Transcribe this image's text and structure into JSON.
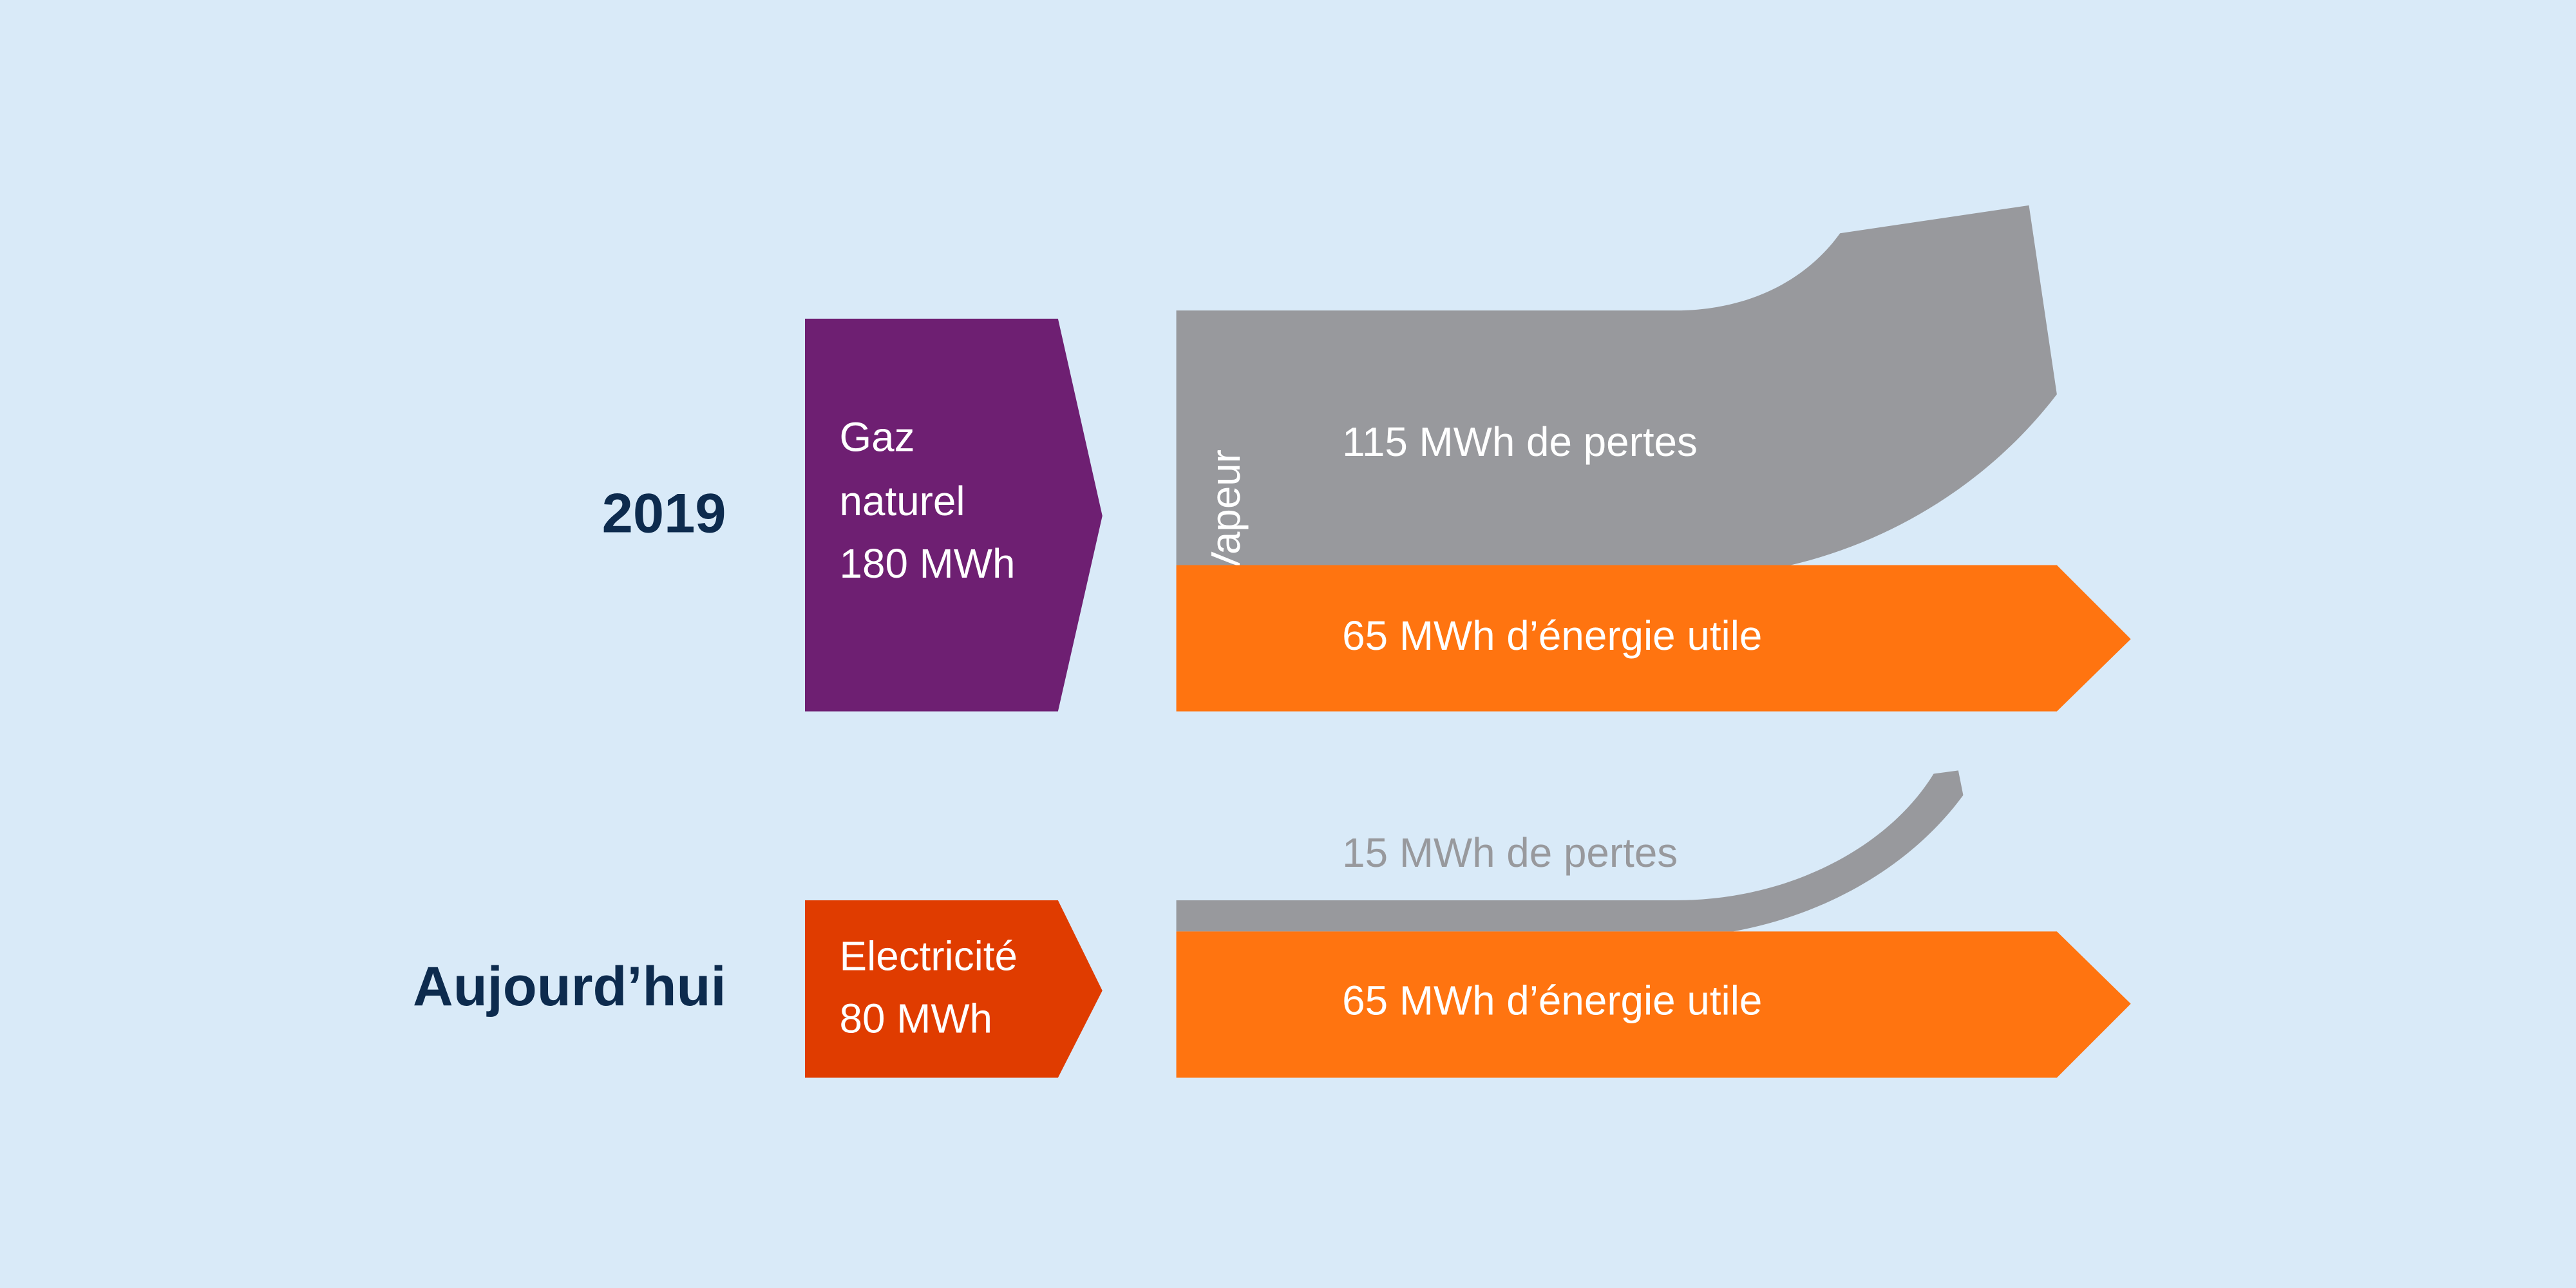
{
  "rows": [
    {
      "label": "2019",
      "input": {
        "lines": [
          "Gaz",
          "naturel",
          "180 MWh"
        ]
      },
      "process": "Vapeur",
      "outputs": [
        {
          "label": "115 MWh de pertes"
        },
        {
          "label": "65 MWh d’énergie utile"
        }
      ]
    },
    {
      "label": "Aujourd’hui",
      "input": {
        "lines": [
          "Electricité",
          "80 MWh"
        ]
      },
      "outputs": [
        {
          "label": "15 MWh de pertes"
        },
        {
          "label": "65 MWh d’énergie utile"
        }
      ]
    }
  ]
}
